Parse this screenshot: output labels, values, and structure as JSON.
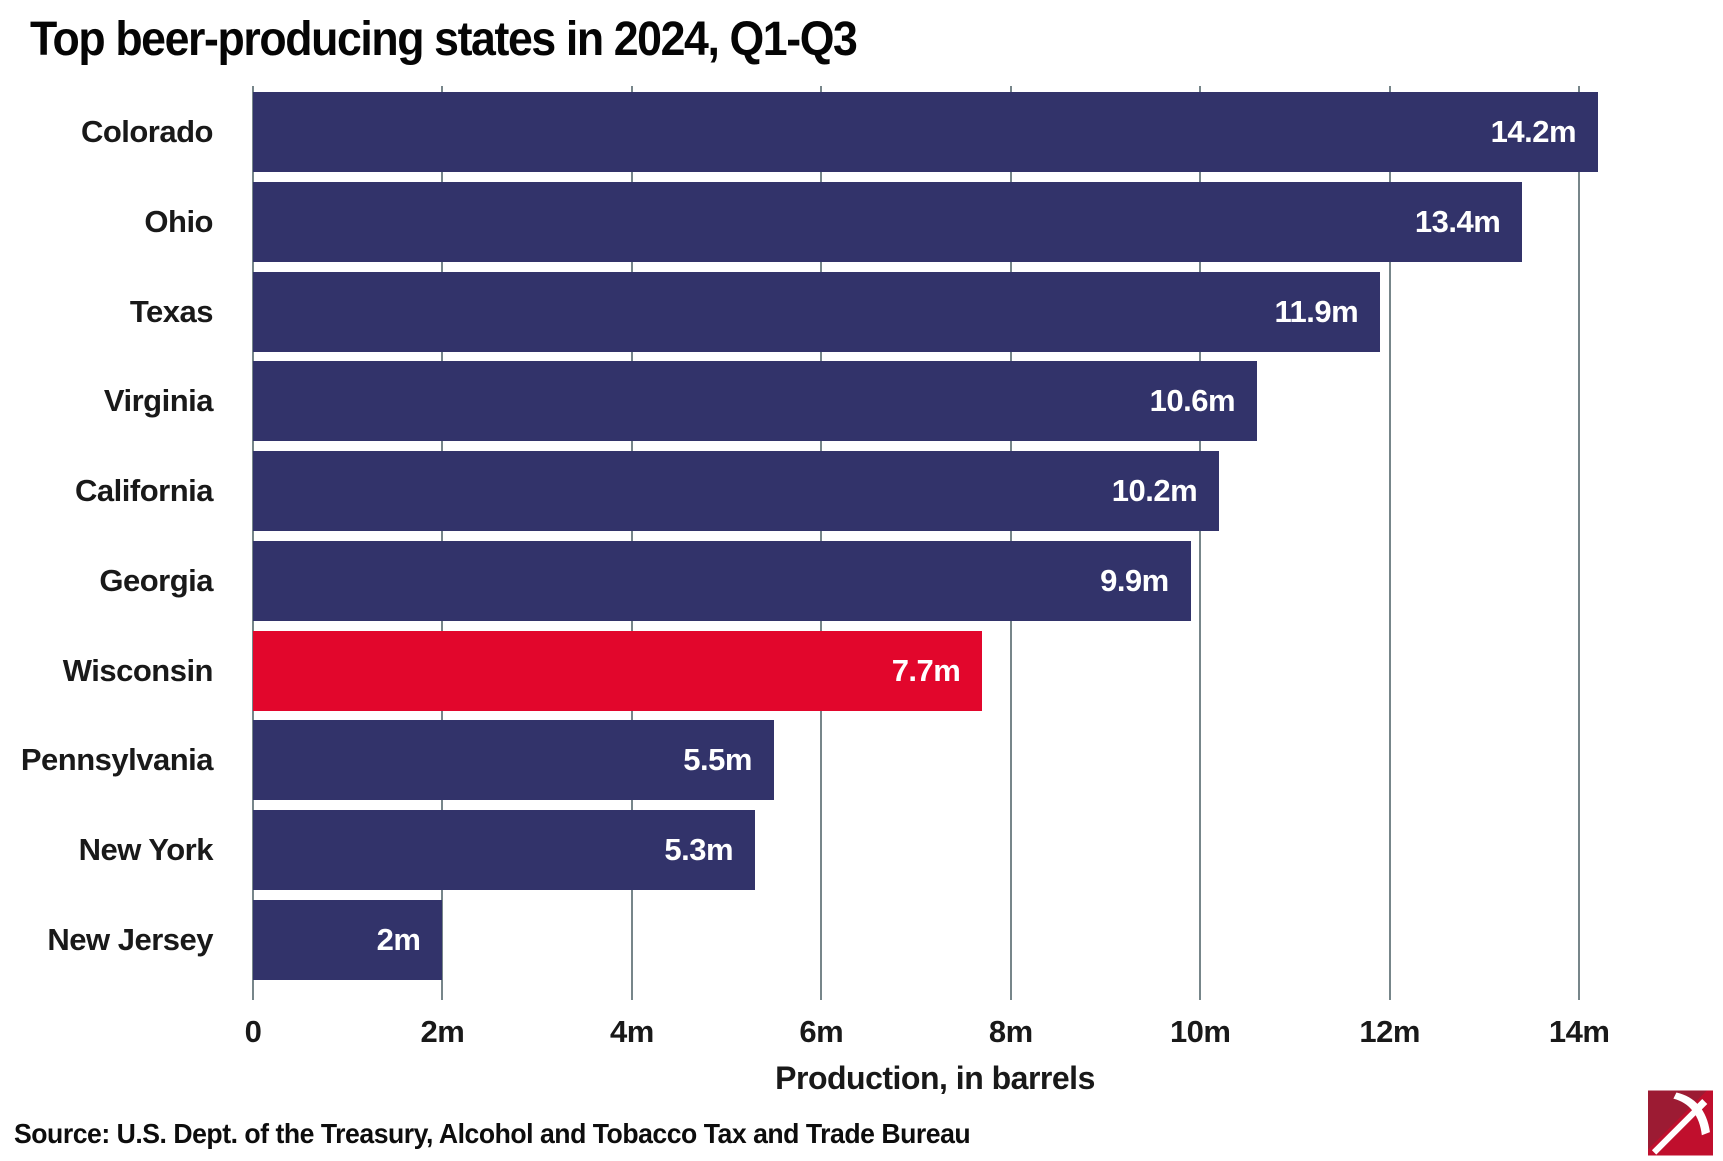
{
  "title": "Top beer-producing states in 2024, Q1-Q3",
  "source_note": "Source: U.S. Dept. of the Treasury, Alcohol and Tobacco Tax and Trade Bureau",
  "logo_icon": "lee-pickaxe-logo",
  "colors": {
    "bar": "#32336a",
    "highlight": "#e2062c",
    "gridline": "#77868a",
    "value_label": "#ffffff",
    "text": "#111111"
  },
  "chart_data": {
    "type": "bar",
    "orientation": "horizontal",
    "title": "Top beer-producing states in 2024, Q1-Q3",
    "categories": [
      "Colorado",
      "Ohio",
      "Texas",
      "Virginia",
      "California",
      "Georgia",
      "Wisconsin",
      "Pennsylvania",
      "New York",
      "New Jersey"
    ],
    "values": [
      14.2,
      13.4,
      11.9,
      10.6,
      10.2,
      9.9,
      7.7,
      5.5,
      5.3,
      2.0
    ],
    "value_labels": [
      "14.2m",
      "13.4m",
      "11.9m",
      "10.6m",
      "10.2m",
      "9.9m",
      "7.7m",
      "5.5m",
      "5.3m",
      "2m"
    ],
    "highlighted_category": "Wisconsin",
    "xlabel": "Production, in barrels",
    "x_ticks": [
      "0",
      "2m",
      "4m",
      "6m",
      "8m",
      "10m",
      "12m",
      "14m"
    ],
    "x_tick_values": [
      0,
      2,
      4,
      6,
      8,
      10,
      12,
      14
    ],
    "xlim": [
      0,
      14.4
    ],
    "grid": true,
    "legend": false
  }
}
